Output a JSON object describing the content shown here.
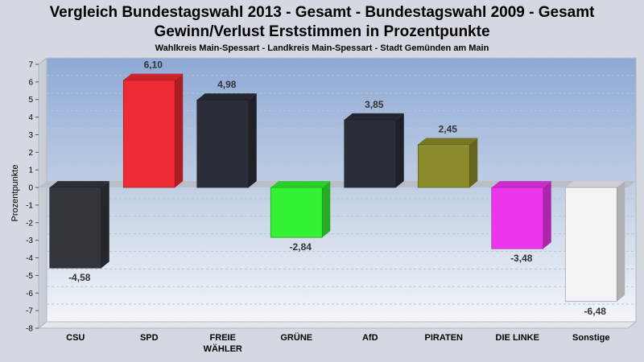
{
  "chart_data": {
    "type": "bar",
    "title": [
      "Vergleich Bundestagswahl 2013 - Gesamt - Bundestagswahl 2009 - Gesamt",
      "Gewinn/Verlust Erststimmen in Prozentpunkte"
    ],
    "subtitle": "Wahlkreis Main-Spessart - Landkreis Main-Spessart - Stadt Gemünden am Main",
    "ylabel": "Prozentpunkte",
    "ylim": [
      -8,
      7
    ],
    "yticks": [
      7,
      6,
      5,
      4,
      3,
      2,
      1,
      0,
      -1,
      -2,
      -3,
      -4,
      -5,
      -6,
      -7,
      -8
    ],
    "grid": true,
    "categories": [
      {
        "label": [
          "CSU"
        ],
        "value": -4.58,
        "value_label": "-4,58",
        "color": "#33363b"
      },
      {
        "label": [
          "SPD"
        ],
        "value": 6.1,
        "value_label": "6,10",
        "color": "#ee2a35"
      },
      {
        "label": [
          "FREIE",
          "WÄHLER"
        ],
        "value": 4.98,
        "value_label": "4,98",
        "color": "#2a2e38"
      },
      {
        "label": [
          "GRÜNE"
        ],
        "value": -2.84,
        "value_label": "-2,84",
        "color": "#33f233"
      },
      {
        "label": [
          "AfD"
        ],
        "value": 3.85,
        "value_label": "3,85",
        "color": "#2a2e38"
      },
      {
        "label": [
          "PIRATEN"
        ],
        "value": 2.45,
        "value_label": "2,45",
        "color": "#8c8c2c"
      },
      {
        "label": [
          "DIE LINKE"
        ],
        "value": -3.48,
        "value_label": "-3,48",
        "color": "#ee35ee"
      },
      {
        "label": [
          "Sonstige"
        ],
        "value": -6.48,
        "value_label": "-6,48",
        "color": "#f4f4f8"
      }
    ]
  }
}
